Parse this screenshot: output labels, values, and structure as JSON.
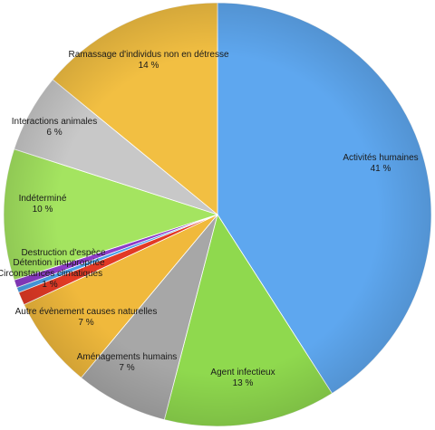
{
  "chart_data": {
    "type": "pie",
    "title": "",
    "slices": [
      {
        "label": "Activités humaines",
        "value": 41,
        "display": "41 %",
        "color": "#5ea7ef",
        "label_color": "#1a1a1a"
      },
      {
        "label": "Agent infectieux",
        "value": 13,
        "display": "13 %",
        "color": "#8fd94e",
        "label_color": "#e03a1e"
      },
      {
        "label": "Aménagements humains",
        "value": 7,
        "display": "7 %",
        "color": "#a7a7a7",
        "label_color": "#1a1a1a"
      },
      {
        "label": "Autre évènement causes naturelles",
        "value": 7,
        "display": "7 %",
        "color": "#f0b93c",
        "label_color": "#1a1a1a"
      },
      {
        "label": "Circonstances climatiques",
        "value": 1,
        "display": "1 %",
        "color": "#e23a25",
        "label_color": "#1a1a1a"
      },
      {
        "label": "Détention inappropriée",
        "value": 0.4,
        "display": "",
        "color": "#4aa0e8",
        "label_color": "#1a1a1a"
      },
      {
        "label": "Destruction d'espèce",
        "value": 0.6,
        "display": "",
        "color": "#8e3cc9",
        "label_color": "#1a1a1a"
      },
      {
        "label": "Indéterminé",
        "value": 10,
        "display": "10 %",
        "color": "#a4e460",
        "label_color": "#1a1a1a"
      },
      {
        "label": "Interactions animales",
        "value": 6,
        "display": "6 %",
        "color": "#c8c8c8",
        "label_color": "#1a1a1a"
      },
      {
        "label": "Ramassage d'individus non en détresse",
        "value": 14,
        "display": "14 %",
        "color": "#f2bf42",
        "label_color": "#1a1a1a"
      }
    ]
  }
}
